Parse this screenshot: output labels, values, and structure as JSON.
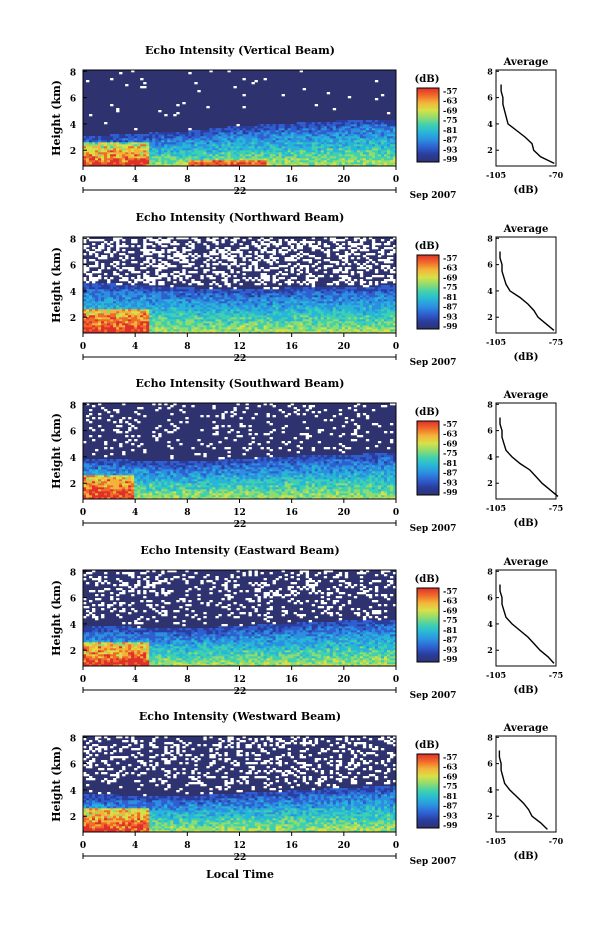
{
  "figure": {
    "xlabel": "Local Time",
    "date_label": "Sep 2007",
    "day_label": "22",
    "colorbar_unit": "(dB)",
    "colorbar_ticks": [
      "-57",
      "-63",
      "-69",
      "-75",
      "-81",
      "-87",
      "-93",
      "-99"
    ],
    "avg_title": "Average",
    "avg_xlabel": "(dB)",
    "ylabel": "Height (km)"
  },
  "colors": {
    "background_noise": "#2e3370",
    "scale": [
      "#2e3370",
      "#2a3d9c",
      "#2f5fd0",
      "#2c8fe0",
      "#28b6d8",
      "#3fd0b0",
      "#8fdc70",
      "#d8e048",
      "#f4b43a",
      "#f06a2a",
      "#e0302a"
    ]
  },
  "chart_data": [
    {
      "type": "heatmap",
      "title": "Echo Intensity (Vertical Beam)",
      "x_ticks": [
        "0",
        "4",
        "8",
        "12",
        "16",
        "20",
        "0"
      ],
      "y_ticks": [
        "2",
        "4",
        "6",
        "8"
      ],
      "xlim": [
        0,
        24
      ],
      "ylim": [
        0.8,
        8.1
      ],
      "layer_top_km": [
        2.7,
        2.8,
        2.9,
        3.0,
        3.1,
        3.3,
        3.5,
        3.6,
        3.7,
        3.8,
        3.9,
        4.0,
        4.0
      ],
      "surface_strong_until_h": 5.0,
      "white_fraction": 0.02,
      "average_profile": {
        "xlim": [
          -105,
          -70
        ],
        "x_ticks": [
          "-105",
          "-70"
        ],
        "y_ticks": [
          "2",
          "4",
          "6",
          "8"
        ],
        "height_km": [
          1.0,
          1.5,
          2.0,
          2.5,
          3.0,
          3.5,
          4.0,
          4.5,
          5.0,
          5.5,
          6.0,
          6.5,
          7.0
        ],
        "intensity_db": [
          -71,
          -79,
          -83,
          -84,
          -88,
          -93,
          -98,
          -99,
          -100,
          -101,
          -101,
          -102,
          -102
        ]
      }
    },
    {
      "type": "heatmap",
      "title": "Echo Intensity (Northward Beam)",
      "x_ticks": [
        "0",
        "4",
        "8",
        "12",
        "16",
        "20",
        "0"
      ],
      "y_ticks": [
        "2",
        "4",
        "6",
        "8"
      ],
      "xlim": [
        0,
        24
      ],
      "ylim": [
        0.8,
        8.1
      ],
      "layer_top_km": [
        4.2,
        4.2,
        4.1,
        4.0,
        3.9,
        3.8,
        3.8,
        3.8,
        3.9,
        4.0,
        4.0,
        4.0,
        4.1
      ],
      "surface_strong_until_h": 5.0,
      "white_fraction": 0.35,
      "average_profile": {
        "xlim": [
          -105,
          -75
        ],
        "x_ticks": [
          "-105",
          "-75"
        ],
        "y_ticks": [
          "2",
          "4",
          "6",
          "8"
        ],
        "height_km": [
          1.0,
          1.5,
          2.0,
          2.5,
          3.0,
          3.5,
          4.0,
          4.5,
          5.0,
          5.5,
          6.0,
          6.5,
          7.0
        ],
        "intensity_db": [
          -76,
          -80,
          -84,
          -86,
          -89,
          -93,
          -98,
          -100,
          -101,
          -102,
          -102,
          -103,
          -103
        ]
      }
    },
    {
      "type": "heatmap",
      "title": "Echo Intensity (Southward Beam)",
      "x_ticks": [
        "0",
        "4",
        "8",
        "12",
        "16",
        "20",
        "0"
      ],
      "y_ticks": [
        "2",
        "4",
        "6",
        "8"
      ],
      "xlim": [
        0,
        24
      ],
      "ylim": [
        0.8,
        8.1
      ],
      "layer_top_km": [
        3.5,
        3.5,
        3.4,
        3.3,
        3.3,
        3.4,
        3.5,
        3.6,
        3.7,
        3.8,
        3.8,
        3.9,
        4.0
      ],
      "surface_strong_until_h": 4.0,
      "white_fraction": 0.12,
      "average_profile": {
        "xlim": [
          -105,
          -75
        ],
        "x_ticks": [
          "-105",
          "-75"
        ],
        "y_ticks": [
          "2",
          "4",
          "6",
          "8"
        ],
        "height_km": [
          1.0,
          1.5,
          2.0,
          2.5,
          3.0,
          3.5,
          4.0,
          4.5,
          5.0,
          5.5,
          6.0,
          6.5,
          7.0
        ],
        "intensity_db": [
          -74,
          -78,
          -82,
          -85,
          -88,
          -93,
          -97,
          -100,
          -101,
          -102,
          -102,
          -103,
          -103
        ]
      }
    },
    {
      "type": "heatmap",
      "title": "Echo Intensity (Eastward Beam)",
      "x_ticks": [
        "0",
        "4",
        "8",
        "12",
        "16",
        "20",
        "0"
      ],
      "y_ticks": [
        "2",
        "4",
        "6",
        "8"
      ],
      "xlim": [
        0,
        24
      ],
      "ylim": [
        0.8,
        8.1
      ],
      "layer_top_km": [
        3.4,
        3.5,
        3.4,
        3.4,
        3.3,
        3.4,
        3.5,
        3.6,
        3.7,
        3.8,
        3.9,
        4.0,
        4.0
      ],
      "surface_strong_until_h": 5.0,
      "white_fraction": 0.22,
      "average_profile": {
        "xlim": [
          -105,
          -75
        ],
        "x_ticks": [
          "-105",
          "-75"
        ],
        "y_ticks": [
          "2",
          "4",
          "6",
          "8"
        ],
        "height_km": [
          1.0,
          1.5,
          2.0,
          2.5,
          3.0,
          3.5,
          4.0,
          4.5,
          5.0,
          5.5,
          6.0,
          6.5,
          7.0
        ],
        "intensity_db": [
          -76,
          -79,
          -83,
          -86,
          -89,
          -93,
          -97,
          -100,
          -101,
          -102,
          -102,
          -103,
          -103
        ]
      }
    },
    {
      "type": "heatmap",
      "title": "Echo Intensity (Westward Beam)",
      "x_ticks": [
        "0",
        "4",
        "8",
        "12",
        "16",
        "20",
        "0"
      ],
      "y_ticks": [
        "2",
        "4",
        "6",
        "8"
      ],
      "xlim": [
        0,
        24
      ],
      "ylim": [
        0.8,
        8.1
      ],
      "layer_top_km": [
        3.3,
        3.3,
        3.2,
        3.2,
        3.2,
        3.3,
        3.4,
        3.5,
        3.6,
        3.7,
        3.8,
        3.9,
        4.0
      ],
      "surface_strong_until_h": 5.0,
      "white_fraction": 0.25,
      "average_profile": {
        "xlim": [
          -105,
          -70
        ],
        "x_ticks": [
          "-105",
          "-70"
        ],
        "y_ticks": [
          "2",
          "4",
          "6",
          "8"
        ],
        "height_km": [
          1.0,
          1.5,
          2.0,
          2.5,
          3.0,
          3.5,
          4.0,
          4.5,
          5.0,
          5.5,
          6.0,
          6.5,
          7.0
        ],
        "intensity_db": [
          -75,
          -79,
          -84,
          -86,
          -89,
          -93,
          -97,
          -100,
          -101,
          -102,
          -102,
          -103,
          -103
        ]
      }
    }
  ]
}
